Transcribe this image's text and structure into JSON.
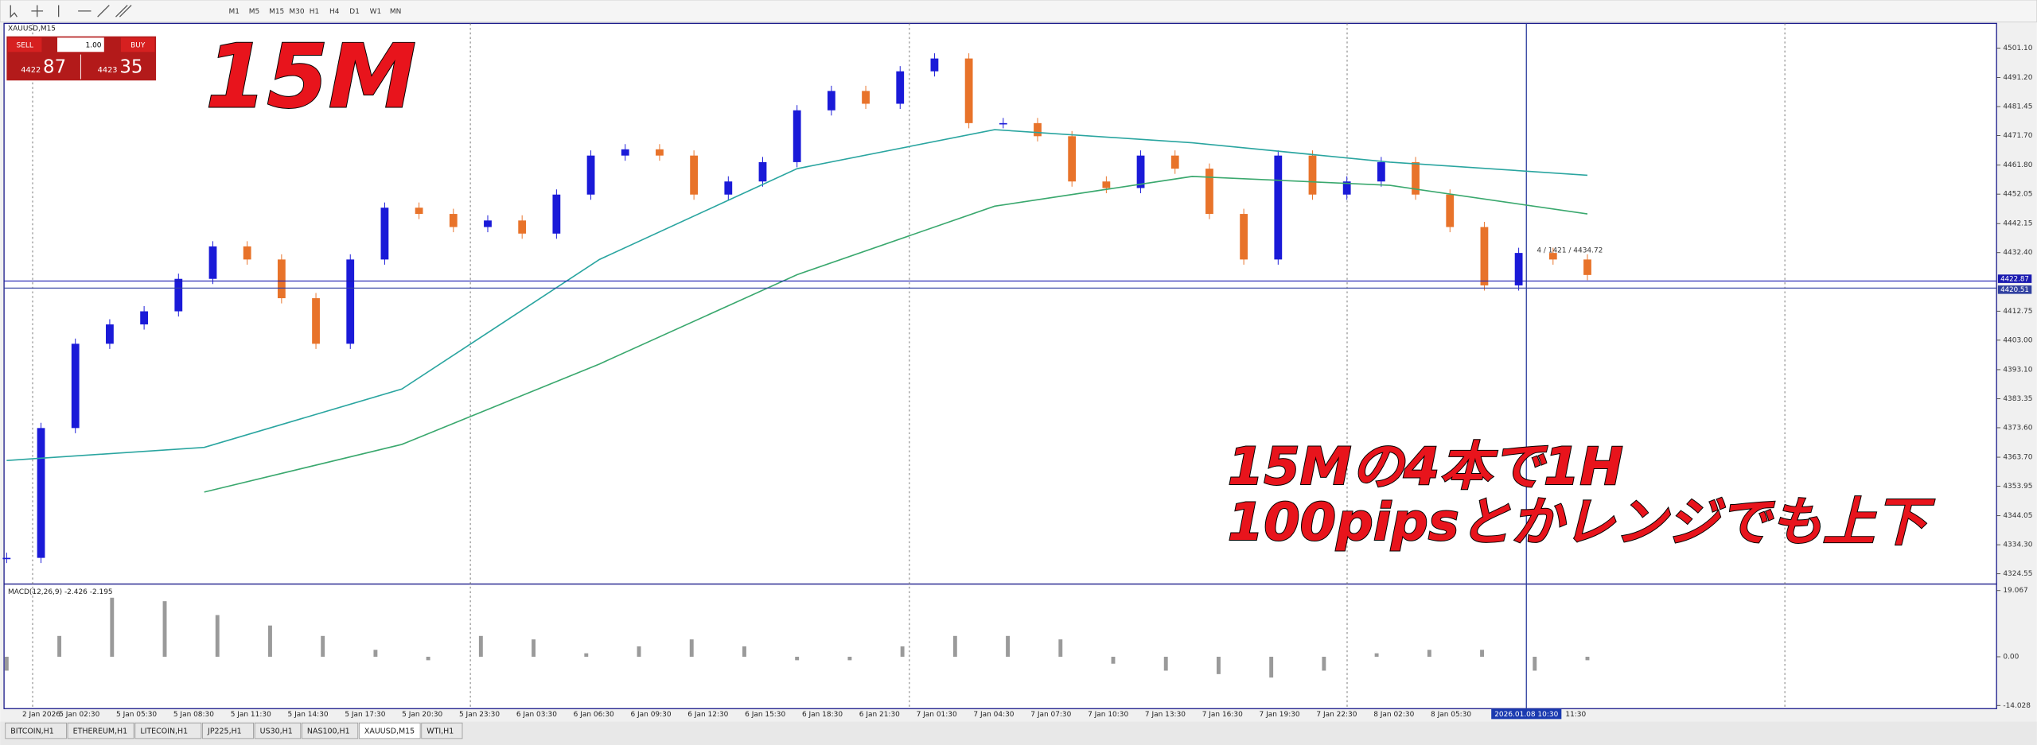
{
  "toolbar": {
    "timeframes": [
      "M1",
      "M5",
      "M15",
      "M30",
      "H1",
      "H4",
      "D1",
      "W1",
      "MN"
    ]
  },
  "trade_panel": {
    "sell": "SELL",
    "buy": "BUY",
    "lots": "1.00",
    "sell_price": [
      "4422",
      "87"
    ],
    "buy_price": [
      "4423",
      "35"
    ]
  },
  "chart_data": {
    "type": "candlestick",
    "title": "XAUUSD,M15",
    "up_color": "#1a1ad8",
    "down_color": "#e8732a",
    "close": [
      4329.9,
      4373.5,
      4401.8,
      4408.3,
      4412.7,
      4423.6,
      4434.5,
      4430.1,
      4417.1,
      4401.8,
      4430.1,
      4447.5,
      4445.4,
      4441.0,
      4443.2,
      4438.8,
      4451.9,
      4465.0,
      4467.1,
      4465.0,
      4451.9,
      4456.3,
      4462.8,
      4480.2,
      4486.7,
      4482.4,
      4493.3,
      4497.6,
      4475.9,
      4475.9,
      4471.5,
      4456.3,
      4454.1,
      4465.0,
      4460.6,
      4445.4,
      4430.1,
      4465.0,
      4451.9,
      4456.3,
      4462.8,
      4451.9,
      4441.0,
      4421.4,
      4432.3,
      4430.1,
      4424.9
    ],
    "moving_averages": [
      {
        "color": "#2aa5a0",
        "values": [
          4362.6,
          4367.0,
          4386.6,
          4430.1,
          4460.6,
          4473.7,
          4469.3,
          4462.8,
          4458.4
        ]
      },
      {
        "color": "#3aa86e",
        "values": [
          null,
          4352,
          4368,
          4395,
          4425,
          4448,
          4458,
          4455,
          4445.4
        ]
      }
    ],
    "ylim": [
      4321.1,
      4509.4
    ],
    "yticks": [
      {
        "value": 4501.1,
        "label": "4501.10"
      },
      {
        "value": 4491.2,
        "label": "4491.20"
      },
      4481.45,
      {
        "value": 4471.7,
        "label": "4471.70"
      },
      {
        "value": 4461.8,
        "label": "4461.80"
      },
      4452.05,
      4442.15,
      {
        "value": 4432.4,
        "label": "4432.40"
      },
      4412.75,
      {
        "value": 4403,
        "label": "4403.00"
      },
      {
        "value": 4393.1,
        "label": "4393.10"
      },
      4383.35,
      {
        "value": 4373.6,
        "label": "4373.60"
      },
      {
        "value": 4363.7,
        "label": "4363.70"
      },
      4353.95,
      4344.05,
      {
        "value": 4334.3,
        "label": "4334.30"
      },
      4324.55
    ],
    "bid": 4422.87,
    "bid2": 4420.51,
    "crosshair_info": "4 / 1421 / 4434.72",
    "time_labels": [
      "2 Jan 2026",
      "5 Jan 02:30",
      "5 Jan 05:30",
      "5 Jan 08:30",
      "5 Jan 11:30",
      "5 Jan 14:30",
      "5 Jan 17:30",
      "5 Jan 20:30",
      "5 Jan 23:30",
      "6 Jan 03:30",
      "6 Jan 06:30",
      "6 Jan 09:30",
      "6 Jan 12:30",
      "6 Jan 15:30",
      "6 Jan 18:30",
      "6 Jan 21:30",
      "7 Jan 01:30",
      "7 Jan 04:30",
      "7 Jan 07:30",
      "7 Jan 10:30",
      "7 Jan 13:30",
      "7 Jan 16:30",
      "7 Jan 19:30",
      "7 Jan 22:30",
      "8 Jan 02:30",
      "8 Jan 05:30"
    ],
    "crosshair_time": "2026.01.08 10:30",
    "last_time": "11:30",
    "annotations": [
      "15M",
      "15Mの4本で1H",
      "100pipsとかレンジでも上下"
    ]
  },
  "macd": {
    "label": "MACD(12,26,9) -2.426 -2.195",
    "color": "#9a9a9a",
    "values": [
      -4,
      6,
      17,
      16,
      12,
      9,
      6,
      2,
      -1,
      6,
      5,
      1,
      3,
      5,
      3,
      -1,
      -1,
      3,
      6,
      6,
      5,
      -2,
      -4,
      -5,
      -6,
      -4,
      1,
      2,
      2,
      -4,
      -1
    ],
    "ylim": [
      -14.95,
      20.19
    ],
    "yticks": [
      19.067,
      {
        "value": 0,
        "label": "0.00"
      },
      -14.028
    ]
  },
  "tabs": [
    "BITCOIN,H1",
    "ETHEREUM,H1",
    "LITECOIN,H1",
    "JP225,H1",
    "US30,H1",
    "NAS100,H1",
    "XAUUSD,M15",
    "WTI,H1"
  ],
  "active_tab": 6
}
